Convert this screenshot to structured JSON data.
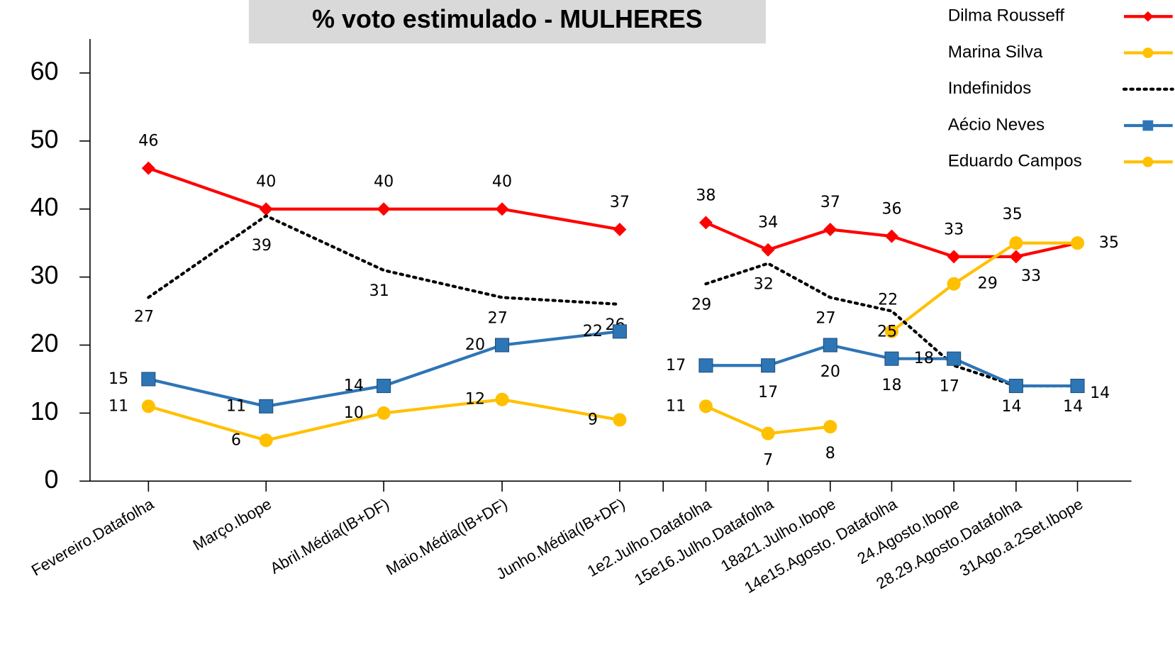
{
  "chart_data": {
    "type": "line",
    "title": "% voto estimulado -  MULHERES",
    "categories": [
      "Fevereiro.Datafolha",
      "Março.Ibope",
      "Abril.Média(IB+DF)",
      "Maio.Média(IB+DF)",
      "Junho.Média(IB+DF)",
      null,
      "1e2.Julho.Datafolha",
      "15e16.Julho.Datafolha",
      "18a21.Julho.Ibope",
      "14e15.Agosto. Datafolha",
      "24.Agosto.Ibope",
      "28.29.Agosto.Datafolha",
      "31Ago.a.2Set.Ibope"
    ],
    "series": [
      {
        "name": "Dilma Rousseff",
        "color": "#ff0000",
        "marker": "diamond",
        "values": [
          46,
          40,
          40,
          40,
          37,
          null,
          38,
          34,
          37,
          36,
          33,
          33,
          35
        ]
      },
      {
        "name": "Marina Silva",
        "color": "#ffc000",
        "marker": "circle",
        "values": [
          null,
          null,
          null,
          null,
          null,
          null,
          null,
          null,
          null,
          22,
          29,
          35,
          35
        ]
      },
      {
        "name": "Indefinidos",
        "color": "#000000",
        "dash": "dotted",
        "values": [
          27,
          39,
          31,
          27,
          26,
          null,
          29,
          32,
          27,
          25,
          17,
          14,
          14
        ]
      },
      {
        "name": "Aécio Neves",
        "color": "#2e75b6",
        "marker": "square",
        "values": [
          15,
          11,
          14,
          20,
          22,
          null,
          17,
          17,
          20,
          18,
          18,
          14,
          14
        ]
      },
      {
        "name": "Eduardo Campos",
        "color": "#ffc000",
        "marker": "circle",
        "values": [
          11,
          6,
          10,
          12,
          9,
          null,
          11,
          7,
          8,
          null,
          null,
          null,
          null
        ]
      }
    ],
    "ylim": [
      0,
      65
    ],
    "yticks": [
      0,
      10,
      20,
      30,
      40,
      50,
      60
    ],
    "legend": "upper right"
  }
}
